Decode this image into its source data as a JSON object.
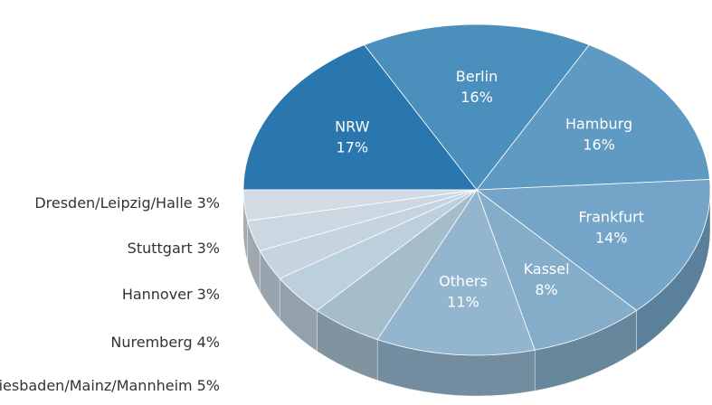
{
  "chart_data": {
    "type": "pie",
    "categories": [
      "NRW",
      "Berlin",
      "Hamburg",
      "Frankfurt",
      "Kassel",
      "Others",
      "Wiesbaden/Mainz/Mannheim",
      "Nuremberg",
      "Hannover",
      "Stuttgart",
      "Dresden/Leipzig/Halle"
    ],
    "values": [
      17,
      16,
      16,
      14,
      8,
      11,
      5,
      4,
      3,
      3,
      3
    ],
    "value_labels": [
      "17%",
      "16%",
      "16%",
      "14%",
      "8%",
      "11%",
      "5%",
      "4%",
      "3%",
      "3%",
      "3%"
    ],
    "colors": [
      "#2a77b0",
      "#4b8fbd",
      "#5f9ac2",
      "#74a5c8",
      "#84adca",
      "#93b5cd",
      "#a5bdcb",
      "#bccfdd",
      "#c5d4df",
      "#ccd8e1",
      "#d3dce4"
    ]
  }
}
